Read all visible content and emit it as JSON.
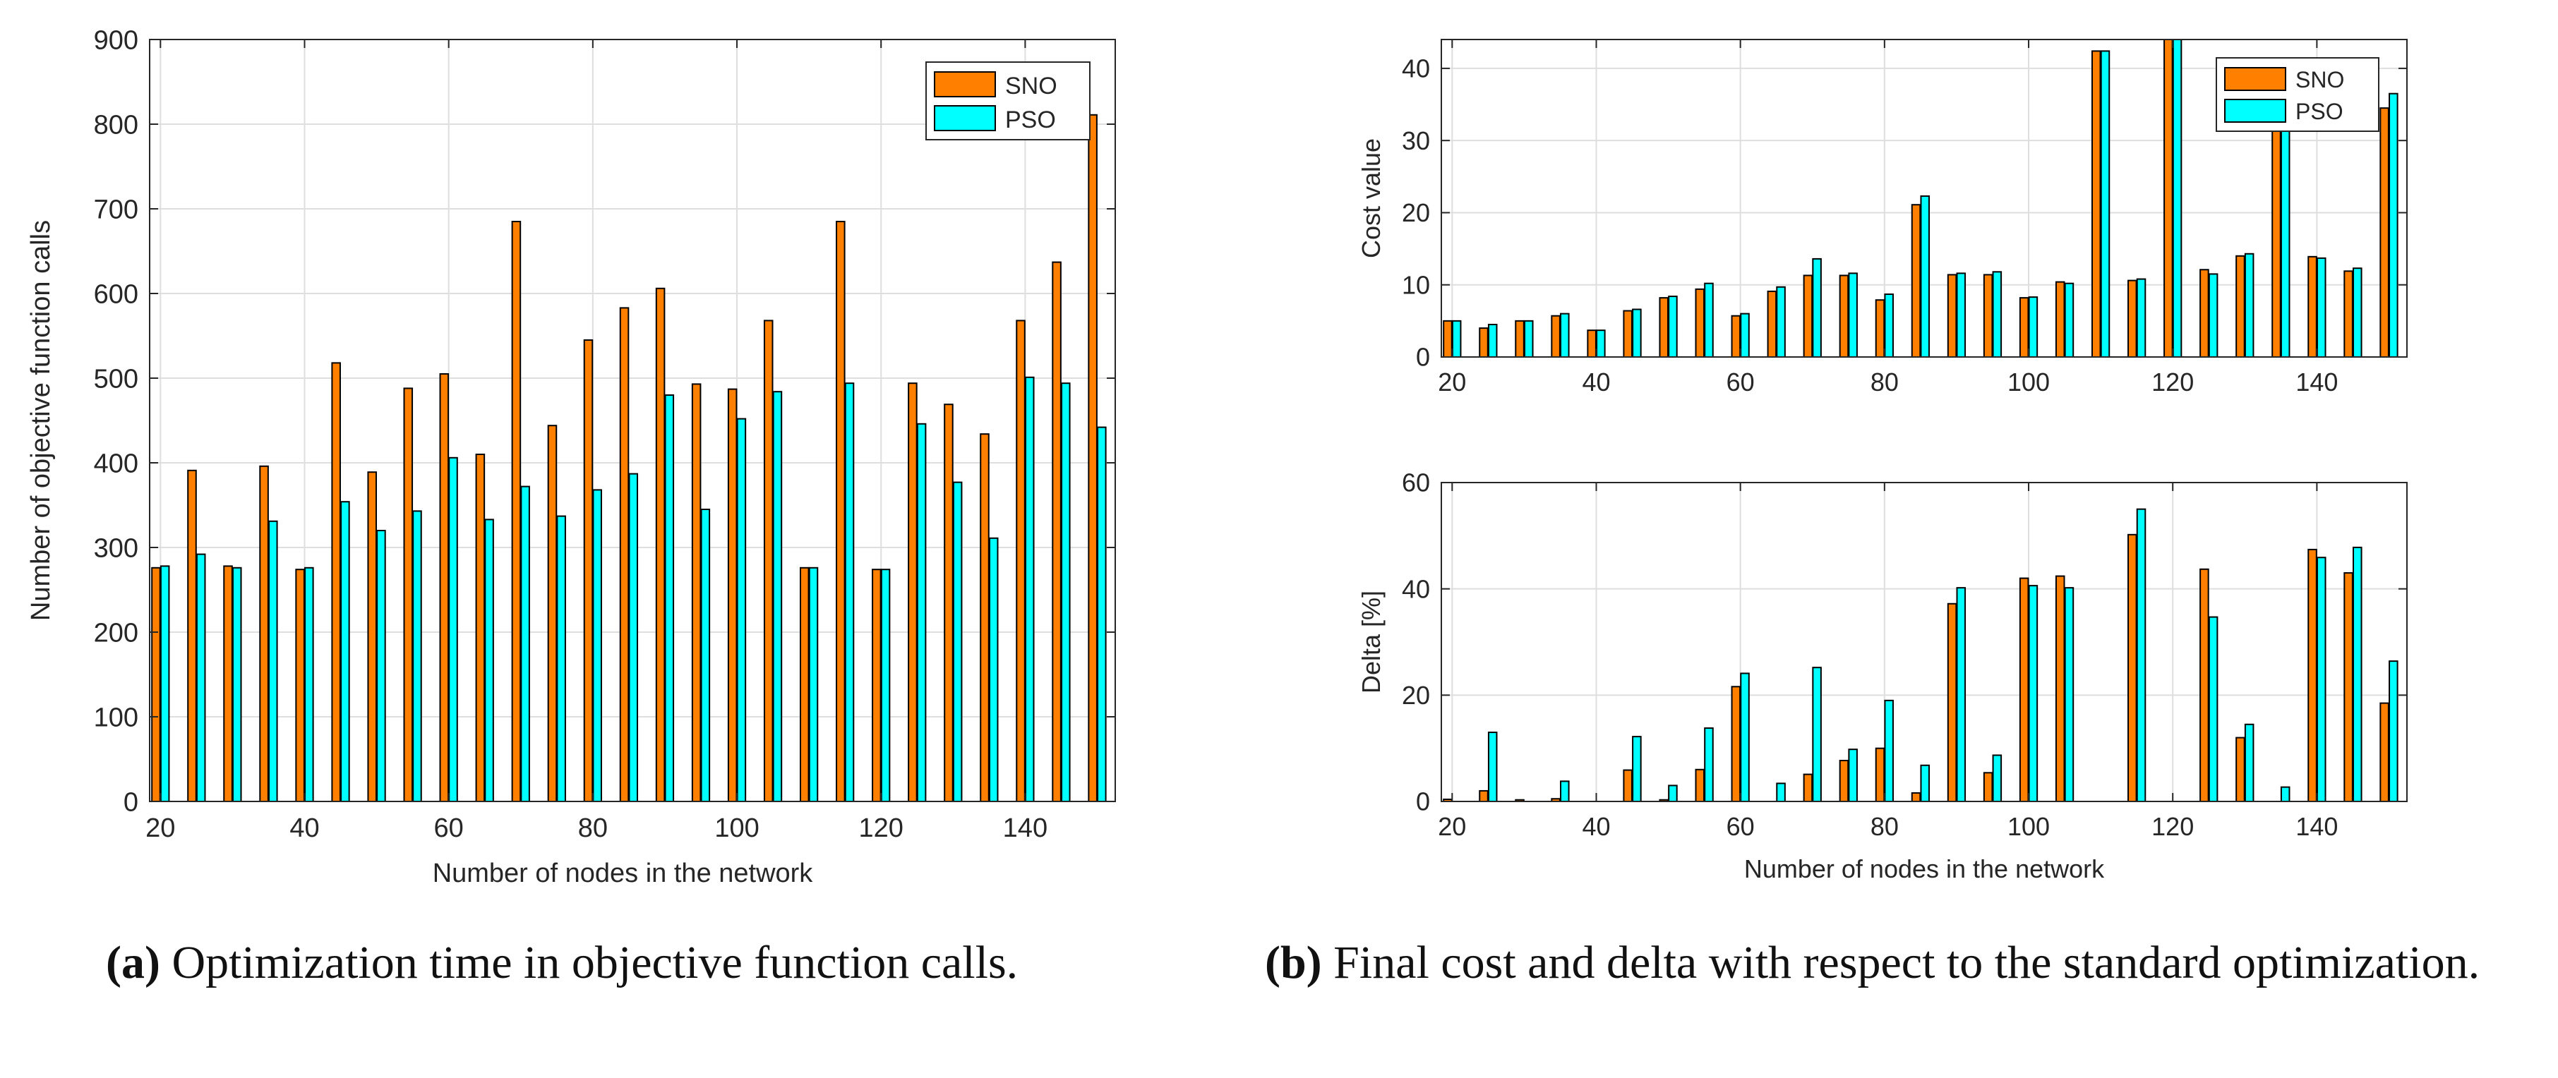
{
  "colors": {
    "sno": "#ff8000",
    "pso": "#00ffff",
    "grid": "#dedede",
    "axis": "#262626",
    "text": "#262626"
  },
  "captions": {
    "a_label": "(a)",
    "a_text": "Optimization time in objective function calls.",
    "b_label": "(b)",
    "b_text": "Final cost and delta with respect to the standard optimization."
  },
  "chart_data": [
    {
      "type": "bar",
      "title": "",
      "xlabel": "Number of nodes in the network",
      "ylabel": "Number of objective function calls",
      "x": [
        20,
        25,
        30,
        35,
        40,
        45,
        50,
        55,
        60,
        65,
        70,
        75,
        80,
        85,
        90,
        95,
        100,
        105,
        110,
        115,
        120,
        125,
        130,
        135,
        140,
        145,
        150
      ],
      "xlim": [
        18.5,
        152.5
      ],
      "xticks": [
        20,
        40,
        60,
        80,
        100,
        120,
        140
      ],
      "ylim": [
        0,
        900
      ],
      "yticks": [
        0,
        100,
        200,
        300,
        400,
        500,
        600,
        700,
        800,
        900
      ],
      "grid": true,
      "legend": "top-right",
      "series": [
        {
          "name": "SNO",
          "values": [
            276,
            391,
            278,
            396,
            274,
            518,
            389,
            488,
            505,
            410,
            685,
            444,
            545,
            583,
            606,
            493,
            487,
            568,
            276,
            685,
            274,
            494,
            469,
            434,
            568,
            637,
            811
          ]
        },
        {
          "name": "PSO",
          "values": [
            278,
            292,
            276,
            331,
            276,
            354,
            320,
            343,
            406,
            333,
            372,
            337,
            368,
            387,
            480,
            345,
            452,
            484,
            276,
            494,
            274,
            446,
            377,
            311,
            501,
            494,
            442
          ]
        }
      ]
    },
    {
      "type": "bar",
      "title": "",
      "xlabel": "",
      "ylabel": "Cost value",
      "x": [
        20,
        25,
        30,
        35,
        40,
        45,
        50,
        55,
        60,
        65,
        70,
        75,
        80,
        85,
        90,
        95,
        100,
        105,
        110,
        115,
        120,
        125,
        130,
        135,
        140,
        145,
        150
      ],
      "xlim": [
        18.5,
        152.5
      ],
      "xticks": [
        20,
        40,
        60,
        80,
        100,
        120,
        140
      ],
      "ylim": [
        0,
        44
      ],
      "yticks": [
        0,
        10,
        20,
        30,
        40
      ],
      "grid": true,
      "legend": "top-right",
      "series": [
        {
          "name": "SNO",
          "values": [
            5,
            4,
            5,
            5.7,
            3.7,
            6.4,
            8.2,
            9.4,
            5.7,
            9.1,
            11.3,
            11.3,
            7.9,
            21.1,
            11.4,
            11.4,
            8.2,
            10.4,
            42.4,
            10.6,
            44,
            12.1,
            14,
            35,
            13.9,
            11.9,
            34.5
          ]
        },
        {
          "name": "PSO",
          "values": [
            5,
            4.5,
            5,
            6,
            3.7,
            6.6,
            8.4,
            10.2,
            6,
            9.7,
            13.6,
            11.6,
            8.7,
            22.3,
            11.6,
            11.8,
            8.3,
            10.2,
            42.4,
            10.8,
            44,
            11.5,
            14.3,
            35,
            13.7,
            12.3,
            36.5
          ]
        }
      ]
    },
    {
      "type": "bar",
      "title": "",
      "xlabel": "Number of nodes in the network",
      "ylabel": "Delta [%]",
      "x": [
        20,
        25,
        30,
        35,
        40,
        45,
        50,
        55,
        60,
        65,
        70,
        75,
        80,
        85,
        90,
        95,
        100,
        105,
        110,
        115,
        120,
        125,
        130,
        135,
        140,
        145,
        150
      ],
      "xlim": [
        18.5,
        152.5
      ],
      "xticks": [
        20,
        40,
        60,
        80,
        100,
        120,
        140
      ],
      "ylim": [
        0,
        60
      ],
      "yticks": [
        0,
        20,
        40,
        60
      ],
      "grid": true,
      "series": [
        {
          "name": "SNO",
          "values": [
            0.4,
            2,
            0.3,
            0.5,
            0,
            5.9,
            0.3,
            6,
            21.6,
            0,
            5.1,
            7.7,
            10,
            1.6,
            37.2,
            5.4,
            42,
            42.4,
            0,
            50.2,
            0,
            43.7,
            12,
            0,
            47.4,
            43,
            18.5
          ]
        },
        {
          "name": "PSO",
          "values": [
            0,
            13,
            0,
            3.8,
            0,
            12.2,
            3,
            13.8,
            24.1,
            3.4,
            25.2,
            9.8,
            19,
            6.8,
            40.2,
            8.7,
            40.6,
            40.2,
            0,
            55,
            0,
            34.7,
            14.5,
            2.7,
            45.9,
            47.8,
            26.4
          ]
        }
      ]
    }
  ]
}
